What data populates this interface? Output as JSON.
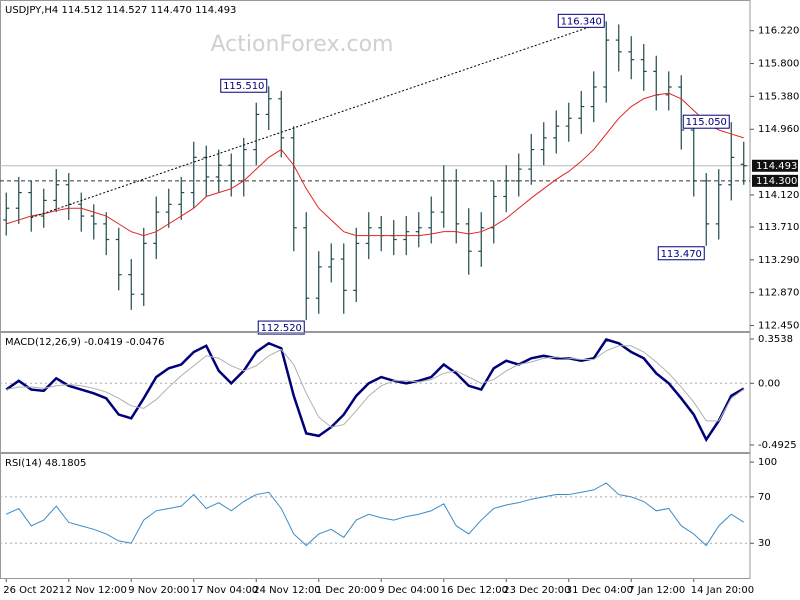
{
  "watermark": "ActionForex.com",
  "chart_data": [
    {
      "type": "ohlc",
      "title": "USDJPY,H4  114.512 114.527 114.470 114.493",
      "color": "#1f4a4a",
      "categories": [
        "26 Oct 2021",
        null,
        null,
        null,
        null,
        "2 Nov 12:00",
        null,
        null,
        null,
        null,
        "9 Nov 20:00",
        null,
        null,
        null,
        null,
        "17 Nov 04:00",
        null,
        null,
        null,
        null,
        "24 Nov 12:00",
        null,
        null,
        null,
        null,
        "1 Dec 20:00",
        null,
        null,
        null,
        null,
        "9 Dec 04:00",
        null,
        null,
        null,
        null,
        "16 Dec 12:00",
        null,
        null,
        null,
        null,
        "23 Dec 20:00",
        null,
        null,
        null,
        null,
        "31 Dec 04:00",
        null,
        null,
        null,
        null,
        "7 Jan 12:00",
        null,
        null,
        null,
        null,
        "14 Jan 20:00",
        null,
        null,
        null,
        null
      ],
      "open": [
        113.8,
        113.95,
        114.15,
        113.85,
        114.05,
        114.25,
        114.0,
        113.85,
        113.75,
        113.55,
        113.1,
        112.85,
        113.5,
        113.9,
        114.0,
        114.15,
        114.6,
        114.35,
        114.5,
        114.3,
        114.7,
        115.15,
        115.35,
        114.85,
        113.7,
        112.8,
        113.2,
        113.3,
        112.9,
        113.5,
        113.7,
        113.6,
        113.55,
        113.65,
        113.7,
        113.9,
        114.3,
        113.75,
        113.4,
        113.7,
        114.1,
        114.3,
        114.45,
        114.7,
        114.85,
        115.0,
        115.1,
        115.25,
        115.5,
        116.1,
        115.95,
        115.85,
        115.7,
        115.4,
        115.5,
        114.95,
        114.3,
        113.75,
        114.25,
        114.512
      ],
      "high": [
        114.15,
        114.35,
        114.3,
        114.2,
        114.45,
        114.4,
        114.15,
        114.0,
        113.9,
        113.7,
        113.3,
        113.7,
        114.1,
        114.2,
        114.35,
        114.8,
        114.75,
        114.7,
        114.65,
        114.85,
        115.3,
        115.51,
        115.45,
        115.0,
        113.9,
        113.4,
        113.5,
        113.5,
        113.7,
        113.9,
        113.85,
        113.8,
        113.85,
        113.9,
        114.1,
        114.5,
        114.45,
        113.95,
        113.9,
        114.3,
        114.5,
        114.65,
        114.9,
        115.05,
        115.2,
        115.3,
        115.45,
        115.7,
        116.34,
        116.3,
        116.15,
        116.05,
        115.9,
        115.7,
        115.65,
        115.15,
        114.4,
        114.45,
        115.05,
        114.8
      ],
      "low": [
        113.6,
        113.75,
        113.65,
        113.7,
        113.9,
        113.8,
        113.65,
        113.55,
        113.35,
        112.9,
        112.65,
        112.7,
        113.3,
        113.7,
        113.8,
        113.95,
        114.1,
        114.15,
        114.1,
        114.1,
        114.5,
        114.95,
        114.6,
        113.4,
        112.52,
        112.6,
        113.0,
        112.6,
        112.75,
        113.3,
        113.4,
        113.35,
        113.35,
        113.45,
        113.5,
        113.7,
        113.5,
        113.1,
        113.2,
        113.5,
        113.9,
        114.1,
        114.25,
        114.5,
        114.65,
        114.8,
        114.9,
        115.05,
        115.3,
        115.7,
        115.6,
        115.45,
        115.2,
        115.2,
        114.7,
        114.1,
        113.47,
        113.55,
        114.05,
        114.25
      ],
      "close": [
        113.95,
        114.15,
        113.85,
        114.05,
        114.25,
        114.0,
        113.85,
        113.75,
        113.55,
        113.1,
        112.85,
        113.5,
        113.9,
        114.0,
        114.15,
        114.6,
        114.35,
        114.5,
        114.3,
        114.7,
        115.15,
        115.35,
        114.85,
        113.7,
        112.8,
        113.2,
        113.3,
        112.9,
        113.5,
        113.7,
        113.6,
        113.55,
        113.65,
        113.7,
        113.9,
        114.3,
        113.75,
        113.4,
        113.7,
        114.1,
        114.3,
        114.45,
        114.7,
        114.85,
        115.0,
        115.1,
        115.25,
        115.5,
        116.1,
        115.95,
        115.85,
        115.7,
        115.4,
        115.5,
        114.95,
        114.3,
        113.75,
        114.25,
        114.6,
        114.493
      ],
      "moving_average": {
        "color": "#e02424",
        "values": [
          113.75,
          113.8,
          113.85,
          113.88,
          113.92,
          113.95,
          113.95,
          113.9,
          113.85,
          113.75,
          113.65,
          113.6,
          113.65,
          113.75,
          113.85,
          113.95,
          114.1,
          114.15,
          114.2,
          114.3,
          114.45,
          114.6,
          114.7,
          114.5,
          114.2,
          113.95,
          113.8,
          113.65,
          113.6,
          113.6,
          113.6,
          113.6,
          113.6,
          113.6,
          113.62,
          113.65,
          113.65,
          113.62,
          113.65,
          113.72,
          113.82,
          113.95,
          114.08,
          114.2,
          114.32,
          114.42,
          114.55,
          114.7,
          114.9,
          115.1,
          115.25,
          115.35,
          115.4,
          115.42,
          115.35,
          115.2,
          115.05,
          114.95,
          114.9,
          114.85
        ]
      },
      "trendline": {
        "from": {
          "bar": 2,
          "value": 113.83
        },
        "to": {
          "bar": 48,
          "value": 116.34
        }
      },
      "annotations": [
        {
          "label": "116.340",
          "bar": 48,
          "value": 116.34,
          "position": "above"
        },
        {
          "label": "115.510",
          "bar": 21,
          "value": 115.51,
          "position": "above"
        },
        {
          "label": "115.050",
          "bar": 58,
          "value": 115.05,
          "position": "above"
        },
        {
          "label": "113.470",
          "bar": 56,
          "value": 113.47,
          "position": "below"
        },
        {
          "label": "112.520",
          "bar": 24,
          "value": 112.52,
          "position": "below"
        }
      ],
      "price_lines": [
        {
          "value": 114.493,
          "label": "114.493",
          "style": "solid"
        },
        {
          "value": 114.3,
          "label": "114.300",
          "style": "dashed"
        }
      ],
      "ylim": [
        112.38,
        116.6
      ],
      "yticks": [
        {
          "value": 116.22,
          "label": "116.220"
        },
        {
          "value": 115.8,
          "label": "115.800"
        },
        {
          "value": 115.38,
          "label": "115.380"
        },
        {
          "value": 114.96,
          "label": "114.960"
        },
        {
          "value": 114.12,
          "label": "114.120"
        },
        {
          "value": 113.71,
          "label": "113.710"
        },
        {
          "value": 113.29,
          "label": "113.290"
        },
        {
          "value": 112.87,
          "label": "112.870"
        },
        {
          "value": 112.45,
          "label": "112.450"
        }
      ]
    },
    {
      "type": "line",
      "title": "MACD(12,26,9) -0.0419 -0.0476",
      "series": [
        {
          "color": "#00007a",
          "width": 2.5,
          "values": [
            -0.05,
            0.02,
            -0.05,
            -0.06,
            0.04,
            -0.02,
            -0.05,
            -0.08,
            -0.12,
            -0.25,
            -0.28,
            -0.12,
            0.05,
            0.12,
            0.15,
            0.25,
            0.3,
            0.1,
            0.0,
            0.1,
            0.25,
            0.32,
            0.28,
            -0.1,
            -0.4,
            -0.42,
            -0.35,
            -0.25,
            -0.1,
            0.0,
            0.05,
            0.02,
            0.0,
            0.02,
            0.05,
            0.15,
            0.08,
            -0.02,
            -0.05,
            0.12,
            0.18,
            0.15,
            0.2,
            0.22,
            0.2,
            0.2,
            0.18,
            0.2,
            0.35,
            0.32,
            0.25,
            0.2,
            0.08,
            0.0,
            -0.12,
            -0.25,
            -0.45,
            -0.3,
            -0.1,
            -0.0419
          ]
        },
        {
          "color": "#b0b0b0",
          "width": 1,
          "values": [
            -0.05,
            -0.03,
            -0.03,
            -0.04,
            -0.02,
            -0.01,
            -0.02,
            -0.04,
            -0.07,
            -0.12,
            -0.18,
            -0.2,
            -0.13,
            -0.03,
            0.06,
            0.14,
            0.22,
            0.2,
            0.14,
            0.1,
            0.14,
            0.22,
            0.27,
            0.15,
            -0.08,
            -0.27,
            -0.35,
            -0.33,
            -0.22,
            -0.1,
            -0.02,
            0.02,
            0.02,
            0.01,
            0.03,
            0.08,
            0.1,
            0.05,
            0.0,
            0.03,
            0.1,
            0.15,
            0.17,
            0.2,
            0.21,
            0.2,
            0.19,
            0.19,
            0.26,
            0.3,
            0.3,
            0.25,
            0.17,
            0.08,
            -0.03,
            -0.15,
            -0.3,
            -0.3,
            -0.12,
            -0.0476
          ]
        }
      ],
      "ylim": [
        -0.549,
        0.402
      ],
      "yticks": [
        0.3538,
        {
          "value": 0,
          "label": "0.00"
        },
        -0.4925
      ],
      "dotted_levels": [
        0
      ]
    },
    {
      "type": "line",
      "title": "RSI(14) 48.1805",
      "series": [
        {
          "color": "#3a8cc8",
          "width": 1,
          "values": [
            55,
            60,
            45,
            50,
            62,
            48,
            45,
            42,
            38,
            32,
            30,
            50,
            58,
            60,
            62,
            72,
            60,
            65,
            58,
            66,
            72,
            74,
            60,
            38,
            28,
            38,
            42,
            35,
            50,
            55,
            52,
            50,
            53,
            55,
            58,
            64,
            45,
            38,
            50,
            60,
            63,
            65,
            68,
            70,
            72,
            72,
            74,
            76,
            82,
            72,
            70,
            66,
            58,
            60,
            45,
            38,
            28,
            45,
            55,
            48.1805
          ]
        }
      ],
      "ylim": [
        0,
        107
      ],
      "yticks": [
        100,
        70,
        30
      ],
      "dotted_levels": [
        70,
        30
      ]
    }
  ]
}
